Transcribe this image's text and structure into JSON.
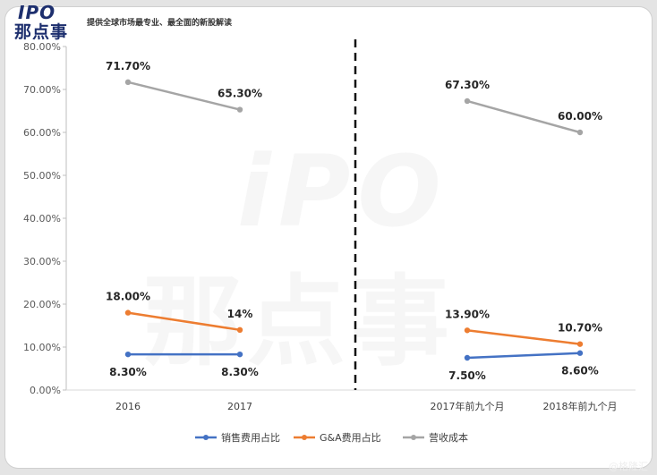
{
  "header": {
    "logo_top": "IPO",
    "logo_bottom": "那点事",
    "tagline": "提供全球市场最专业、最全面的新股解读"
  },
  "watermark": {
    "top": "iPO",
    "bottom": "那点事"
  },
  "credit": "@格隆汇",
  "chart_data": {
    "type": "line",
    "ylim": [
      0,
      80
    ],
    "yticks": [
      "0.00%",
      "10.00%",
      "20.00%",
      "30.00%",
      "40.00%",
      "50.00%",
      "60.00%",
      "70.00%",
      "80.00%"
    ],
    "grid": false,
    "legend_position": "bottom",
    "divider": "dashed vertical line between 2017 and 2017年前九个月",
    "panels": [
      {
        "categories": [
          "2016",
          "2017"
        ]
      },
      {
        "categories": [
          "2017年前九个月",
          "2018年前九个月"
        ]
      }
    ],
    "series": [
      {
        "name": "销售费用占比",
        "color": "#4472c4",
        "values": [
          [
            8.3,
            8.3
          ],
          [
            7.5,
            8.6
          ]
        ],
        "labels": [
          [
            "8.30%",
            "8.30%"
          ],
          [
            "7.50%",
            "8.60%"
          ]
        ],
        "label_position": "below"
      },
      {
        "name": "G&A费用占比",
        "color": "#ed7d31",
        "values": [
          [
            18.0,
            14.0
          ],
          [
            13.9,
            10.7
          ]
        ],
        "labels": [
          [
            "18.00%",
            "14%"
          ],
          [
            "13.90%",
            "10.70%"
          ]
        ],
        "label_position": "above"
      },
      {
        "name": "营收成本",
        "color": "#a5a5a5",
        "values": [
          [
            71.7,
            65.3
          ],
          [
            67.3,
            60.0
          ]
        ],
        "labels": [
          [
            "71.70%",
            "65.30%"
          ],
          [
            "67.30%",
            "60.00%"
          ]
        ],
        "label_position": "above"
      }
    ]
  }
}
